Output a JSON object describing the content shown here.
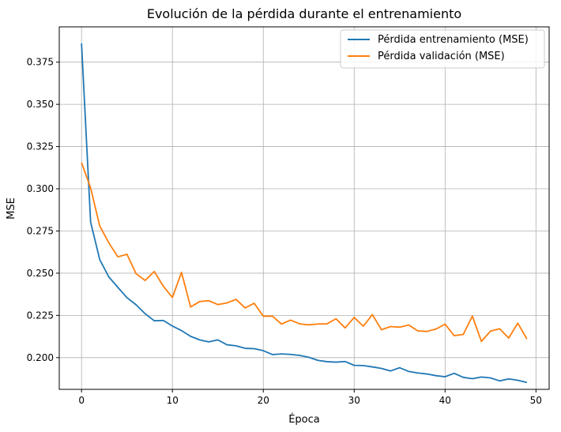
{
  "chart_data": {
    "type": "line",
    "title": "Evolución de la pérdida durante el entrenamiento",
    "xlabel": "Época",
    "ylabel": "MSE",
    "xlim": [
      -2.45,
      51.45
    ],
    "ylim": [
      0.1812,
      0.3959
    ],
    "xticks": [
      0,
      10,
      20,
      30,
      40,
      50
    ],
    "yticks": [
      0.2,
      0.225,
      0.25,
      0.275,
      0.3,
      0.325,
      0.35,
      0.375
    ],
    "ytick_labels": [
      "0.200",
      "0.225",
      "0.250",
      "0.275",
      "0.300",
      "0.325",
      "0.350",
      "0.375"
    ],
    "grid": true,
    "legend_position": "top-right",
    "x": [
      0,
      1,
      2,
      3,
      4,
      5,
      6,
      7,
      8,
      9,
      10,
      11,
      12,
      13,
      14,
      15,
      16,
      17,
      18,
      19,
      20,
      21,
      22,
      23,
      24,
      25,
      26,
      27,
      28,
      29,
      30,
      31,
      32,
      33,
      34,
      35,
      36,
      37,
      38,
      39,
      40,
      41,
      42,
      43,
      44,
      45,
      46,
      47,
      48,
      49
    ],
    "series": [
      {
        "name": "Pérdida entrenamiento (MSE)",
        "color": "#1f77b4",
        "values": [
          0.3861,
          0.2803,
          0.2581,
          0.2478,
          0.2416,
          0.2355,
          0.2313,
          0.226,
          0.2218,
          0.222,
          0.2187,
          0.216,
          0.2126,
          0.2105,
          0.2093,
          0.2105,
          0.2076,
          0.207,
          0.2055,
          0.2053,
          0.2041,
          0.2018,
          0.2022,
          0.2019,
          0.2013,
          0.2002,
          0.1984,
          0.1976,
          0.1973,
          0.1977,
          0.1954,
          0.1953,
          0.1945,
          0.1936,
          0.1921,
          0.194,
          0.1918,
          0.1909,
          0.1903,
          0.1893,
          0.1887,
          0.1907,
          0.1883,
          0.1875,
          0.1885,
          0.188,
          0.1862,
          0.1874,
          0.1866,
          0.1853
        ]
      },
      {
        "name": "Pérdida validación (MSE)",
        "color": "#ff7f0e",
        "values": [
          0.3155,
          0.3005,
          0.278,
          0.268,
          0.2597,
          0.2612,
          0.2497,
          0.2457,
          0.251,
          0.2423,
          0.2356,
          0.2505,
          0.23,
          0.2332,
          0.2337,
          0.2314,
          0.2324,
          0.2345,
          0.2294,
          0.2322,
          0.2245,
          0.2246,
          0.2199,
          0.2222,
          0.22,
          0.2194,
          0.2199,
          0.22,
          0.223,
          0.2176,
          0.2238,
          0.2186,
          0.2255,
          0.2165,
          0.2184,
          0.218,
          0.2193,
          0.2158,
          0.2155,
          0.2169,
          0.2198,
          0.213,
          0.2137,
          0.2246,
          0.2096,
          0.2157,
          0.2171,
          0.2116,
          0.2204,
          0.211
        ]
      }
    ]
  }
}
